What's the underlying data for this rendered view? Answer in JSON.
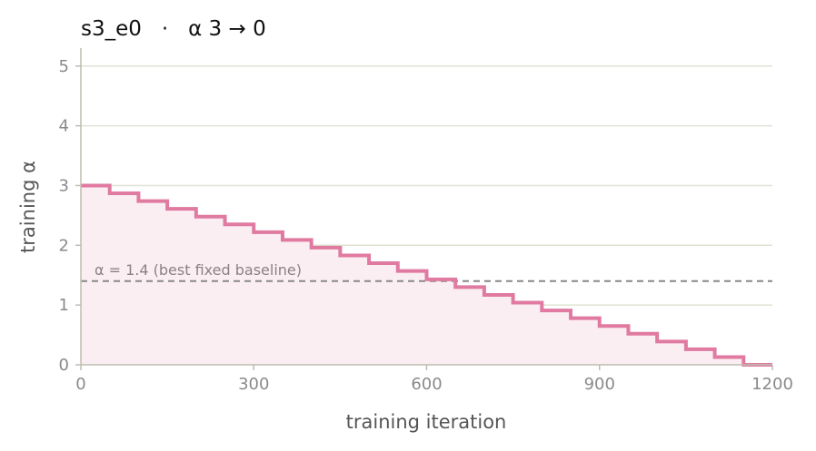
{
  "chart_data": {
    "type": "line",
    "title": "s3_e0   ·   α 3 → 0",
    "xlabel": "training iteration",
    "ylabel": "training α",
    "xlim": [
      0,
      1200
    ],
    "ylim": [
      0,
      5.3
    ],
    "xticks": [
      0,
      300,
      600,
      900,
      1200
    ],
    "yticks": [
      0,
      1,
      2,
      3,
      4,
      5
    ],
    "grid": "horizontal",
    "series": [
      {
        "step": "post",
        "color": "#e07aa0",
        "fill_color": "#fbeef2",
        "x": [
          0,
          50,
          100,
          150,
          200,
          250,
          300,
          350,
          400,
          450,
          500,
          550,
          600,
          650,
          700,
          750,
          800,
          850,
          900,
          950,
          1000,
          1050,
          1100,
          1150,
          1200
        ],
        "values": [
          3.0,
          2.87,
          2.74,
          2.61,
          2.48,
          2.35,
          2.22,
          2.09,
          1.96,
          1.83,
          1.7,
          1.57,
          1.43,
          1.3,
          1.17,
          1.04,
          0.91,
          0.78,
          0.65,
          0.52,
          0.39,
          0.26,
          0.13,
          0.0,
          0.0
        ]
      }
    ],
    "reference_line": {
      "y": 1.4,
      "style": "dashed",
      "color": "#888888",
      "label": "α = 1.4 (best fixed baseline)"
    },
    "colors": {
      "grid": "#dfe3d3",
      "axis": "#bdbdb0",
      "tick_text": "#8a8a8a"
    }
  }
}
